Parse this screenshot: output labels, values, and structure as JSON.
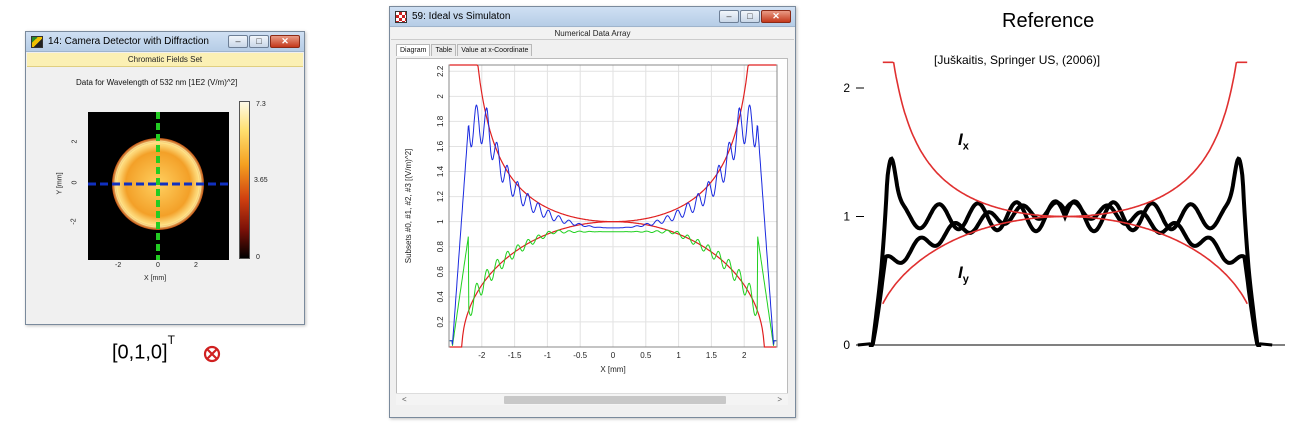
{
  "window1": {
    "title": "14: Camera Detector with Diffraction",
    "subheader": "Chromatic Fields Set",
    "plot_title": "Data for Wavelength of 532 nm  [1E2 (V/m)^2]",
    "xlabel": "X [mm]",
    "ylabel": "Y [mm]",
    "x_ticks": [
      "-2",
      "0",
      "2"
    ],
    "y_ticks": [
      "2",
      "0",
      "-2"
    ],
    "colorbar_ticks": [
      "7.3",
      "3.65",
      "0"
    ],
    "colors": {
      "background": "#000000",
      "disk": "#f0a030",
      "vertical_line": "#22cc22",
      "horizontal_line": "#1030c0"
    }
  },
  "caption": {
    "vector": "[0,1,0]",
    "superscript": "T"
  },
  "window2": {
    "title": "59: Ideal vs Simulaton",
    "subheader": "Numerical Data Array",
    "tabs": [
      "Diagram",
      "Table",
      "Value at x-Coordinate"
    ],
    "active_tab": "Diagram",
    "chart_data": {
      "type": "line",
      "xlabel": "X [mm]",
      "ylabel": "Subsets #0, #1, #2, #3 [(V/m)^2]",
      "xlim": [
        -2.5,
        2.5
      ],
      "ylim": [
        0,
        2.25
      ],
      "x_ticks": [
        -2,
        -1.5,
        -1,
        -0.5,
        0,
        0.5,
        1,
        1.5,
        2
      ],
      "y_ticks": [
        0.2,
        0.4,
        0.6,
        0.8,
        1,
        1.2,
        1.4,
        1.6,
        1.8,
        2,
        2.2
      ],
      "grid": true,
      "series": [
        {
          "color": "#e02020",
          "kind": "ideal_upper"
        },
        {
          "color": "#e02020",
          "kind": "ideal_lower"
        },
        {
          "color": "#1a2adf",
          "kind": "simulated_upper"
        },
        {
          "color": "#20d020",
          "kind": "simulated_lower"
        }
      ]
    },
    "scroll": {
      "left": "<",
      "right": ">"
    }
  },
  "reference": {
    "title": "Reference",
    "citation": "[Juškaitis, Springer US, (2006)]",
    "chart_data": {
      "type": "line",
      "y_ticks": [
        "2",
        "1",
        "0"
      ],
      "ylim": [
        0,
        2
      ],
      "curve_labels": [
        {
          "base": "I",
          "sub": "x"
        },
        {
          "base": "I",
          "sub": "y"
        }
      ],
      "colors": {
        "theory": "#e03030",
        "measured": "#000000"
      }
    }
  }
}
